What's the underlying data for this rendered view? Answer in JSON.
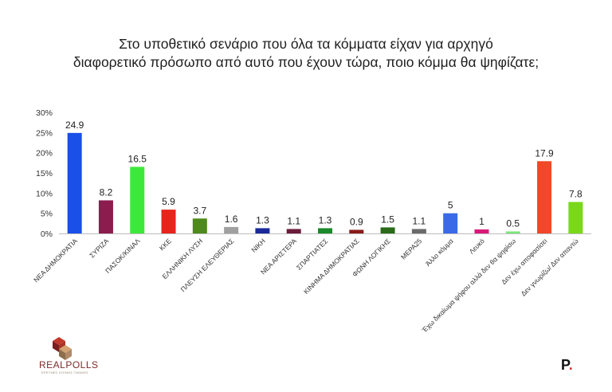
{
  "title_line1": "Στο υποθετικό σενάριο που όλα τα κόμματα είχαν για αρχηγό",
  "title_line2": "διαφορετικό πρόσωπο από αυτό που έχουν τώρα, ποιο κόμμα θα ψηφίζατε;",
  "logo": {
    "text": "REALPOLLS",
    "subtext": "ΕΡΕΥΝΕΣ ΚΟΙΝΗΣ ΓΝΩΜΗΣ"
  },
  "publisher_mark": {
    "letter": "P",
    "dot": "."
  },
  "chart_data": {
    "type": "bar",
    "title": "Στο υποθετικό σενάριο που όλα τα κόμματα είχαν για αρχηγό διαφορετικό πρόσωπο από αυτό που έχουν τώρα, ποιο κόμμα θα ψηφίζατε;",
    "xlabel": "",
    "ylabel": "",
    "ylim": [
      0,
      30
    ],
    "yticks": [
      "0%",
      "5%",
      "10%",
      "15%",
      "20%",
      "25%",
      "30%"
    ],
    "grid": false,
    "categories": [
      "ΝΕΑ ΔΗΜΟΚΡΑΤΙΑ",
      "ΣΥΡΙΖΑ",
      "ΠΑΣΟΚ/ΚΙΝΑΛ",
      "ΚΚΕ",
      "ΕΛΛΗΝΙΚΗ ΛΥΣΗ",
      "ΠΛΕΥΣΗ ΕΛΕΥΘΕΡΙΑΣ",
      "ΝΙΚΗ",
      "ΝΕΑ ΑΡΙΣΤΕΡΑ",
      "ΣΠΑΡΤΙΑΤΕΣ",
      "ΚΙΝΗΜΑ ΔΗΜΟΚΡΑΤΙΑΣ",
      "ΦΩΝΗ ΛΟΓΙΚΗΣ",
      "ΜΕΡΑ25",
      "Άλλο κόμμα",
      "Λευκό",
      "Έχω δικαίωμα ψήφου αλλά δεν θα ψηφίσω",
      "Δεν έχω αποφασίσει",
      "Δεν γνωρίζω/ Δεν απαντώ"
    ],
    "values": [
      24.9,
      8.2,
      16.5,
      5.9,
      3.7,
      1.6,
      1.3,
      1.1,
      1.3,
      0.9,
      1.5,
      1.1,
      5,
      1,
      0.5,
      17.9,
      7.8
    ],
    "value_labels": [
      "24.9",
      "8.2",
      "16.5",
      "5.9",
      "3.7",
      "1.6",
      "1.3",
      "1.1",
      "1.3",
      "0.9",
      "1.5",
      "1.1",
      "5",
      "1",
      "0.5",
      "17.9",
      "7.8"
    ],
    "colors": [
      "#1a4fe8",
      "#8c1c4d",
      "#3ee83a",
      "#e8241c",
      "#4e8a1c",
      "#a0a0a0",
      "#1a2a9a",
      "#6a1a3a",
      "#1a8a2a",
      "#8a1a1a",
      "#2a6a1a",
      "#6a6a6a",
      "#3a6ae8",
      "#d81a7a",
      "#7ae87a",
      "#f04828",
      "#7ad81a"
    ]
  }
}
